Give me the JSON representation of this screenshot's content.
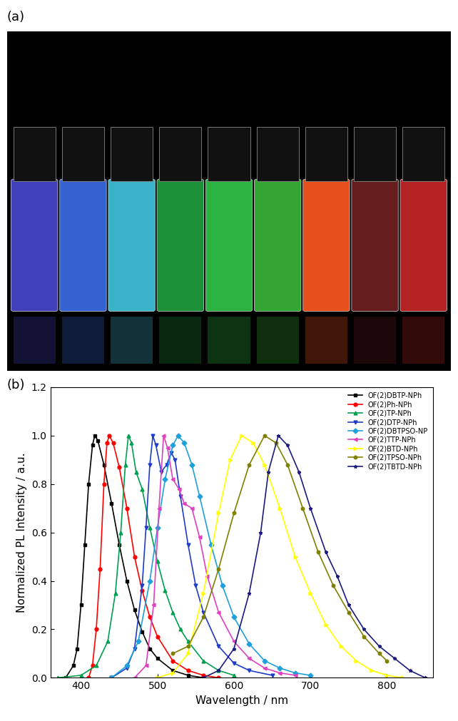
{
  "photo": {
    "label": "(a)"
  },
  "chart_data": {
    "type": "line",
    "panel_label": "(b)",
    "x_label": "Wavelength / nm",
    "y_label": "Normalized PL Intensity / a.u.",
    "xlim": [
      360,
      860
    ],
    "xticks": [
      400,
      500,
      600,
      700,
      800
    ],
    "ylim": [
      0.0,
      1.2
    ],
    "yticks": [
      0.0,
      0.2,
      0.4,
      0.6,
      0.8,
      1.0,
      1.2
    ],
    "legend": "upper right",
    "series": [
      {
        "name": "OF(2)DBTP-NPh",
        "color": "#000000",
        "marker": "square",
        "x": [
          380,
          390,
          395,
          400,
          405,
          410,
          415,
          418,
          422,
          430,
          440,
          450,
          460,
          470,
          480,
          490,
          500,
          520,
          540,
          560
        ],
        "values": [
          0.0,
          0.05,
          0.12,
          0.3,
          0.55,
          0.8,
          0.96,
          1.0,
          0.98,
          0.88,
          0.72,
          0.55,
          0.4,
          0.28,
          0.19,
          0.12,
          0.08,
          0.03,
          0.01,
          0.0
        ]
      },
      {
        "name": "OF(2)Ph-NPh",
        "color": "#ff0000",
        "marker": "circle",
        "x": [
          410,
          415,
          420,
          425,
          430,
          434,
          437,
          442,
          450,
          460,
          470,
          480,
          490,
          500,
          520,
          540,
          560,
          580
        ],
        "values": [
          0.0,
          0.05,
          0.2,
          0.45,
          0.8,
          0.97,
          1.0,
          0.97,
          0.87,
          0.7,
          0.5,
          0.36,
          0.25,
          0.17,
          0.07,
          0.03,
          0.01,
          0.0
        ]
      },
      {
        "name": "OF(2)TP-NPh",
        "color": "#00a050",
        "marker": "triangle_up",
        "x": [
          370,
          400,
          420,
          435,
          445,
          452,
          458,
          462,
          466,
          472,
          480,
          490,
          500,
          510,
          520,
          530,
          540,
          560,
          580,
          600
        ],
        "values": [
          0.0,
          0.01,
          0.05,
          0.15,
          0.35,
          0.6,
          0.88,
          1.0,
          0.97,
          0.85,
          0.78,
          0.62,
          0.48,
          0.36,
          0.27,
          0.2,
          0.15,
          0.07,
          0.03,
          0.01
        ]
      },
      {
        "name": "OF(2)DTP-NPh",
        "color": "#1e3cc8",
        "marker": "triangle_down",
        "x": [
          440,
          460,
          470,
          480,
          485,
          490,
          494,
          498,
          505,
          512,
          518,
          523,
          530,
          540,
          550,
          560,
          580,
          600,
          620,
          650
        ],
        "values": [
          0.0,
          0.04,
          0.12,
          0.38,
          0.62,
          0.88,
          1.0,
          0.96,
          0.85,
          0.88,
          0.93,
          0.9,
          0.75,
          0.55,
          0.38,
          0.27,
          0.13,
          0.06,
          0.03,
          0.01
        ]
      },
      {
        "name": "OF(2)DBTPSO-NP",
        "color": "#1ea0dc",
        "marker": "diamond",
        "x": [
          440,
          460,
          475,
          490,
          500,
          510,
          520,
          527,
          535,
          545,
          555,
          570,
          585,
          600,
          620,
          640,
          660,
          680,
          700
        ],
        "values": [
          0.0,
          0.05,
          0.15,
          0.4,
          0.62,
          0.82,
          0.96,
          1.0,
          0.97,
          0.88,
          0.75,
          0.55,
          0.38,
          0.25,
          0.14,
          0.07,
          0.04,
          0.02,
          0.01
        ]
      },
      {
        "name": "OF(2)TTP-NPh",
        "color": "#e040c0",
        "marker": "triangle_left",
        "x": [
          470,
          485,
          495,
          502,
          508,
          513,
          520,
          528,
          535,
          545,
          555,
          565,
          580,
          600,
          620,
          640,
          660,
          680
        ],
        "values": [
          0.0,
          0.05,
          0.3,
          0.7,
          1.0,
          0.95,
          0.82,
          0.78,
          0.72,
          0.7,
          0.58,
          0.42,
          0.27,
          0.15,
          0.08,
          0.04,
          0.02,
          0.01
        ]
      },
      {
        "name": "OF(2)BTD-NPh",
        "color": "#ffff00",
        "marker": "triangle_right",
        "x": [
          500,
          520,
          540,
          560,
          580,
          595,
          610,
          625,
          640,
          660,
          680,
          700,
          720,
          740,
          760,
          780,
          800,
          820
        ],
        "values": [
          0.0,
          0.02,
          0.1,
          0.35,
          0.68,
          0.9,
          1.0,
          0.97,
          0.88,
          0.7,
          0.5,
          0.35,
          0.22,
          0.13,
          0.07,
          0.03,
          0.01,
          0.0
        ]
      },
      {
        "name": "OF(2)TPSO-NPh",
        "color": "#808000",
        "marker": "hexagon",
        "x": [
          520,
          540,
          560,
          580,
          600,
          620,
          640,
          655,
          670,
          690,
          710,
          730,
          750,
          770,
          790,
          800
        ],
        "values": [
          0.1,
          0.13,
          0.25,
          0.45,
          0.68,
          0.88,
          1.0,
          0.97,
          0.88,
          0.7,
          0.52,
          0.38,
          0.27,
          0.17,
          0.1,
          0.07
        ]
      },
      {
        "name": "OF(2)TBTD-NPh",
        "color": "#1a1a80",
        "marker": "star",
        "x": [
          560,
          580,
          600,
          620,
          635,
          645,
          658,
          670,
          685,
          700,
          720,
          735,
          750,
          770,
          790,
          810,
          830,
          850
        ],
        "values": [
          0.0,
          0.03,
          0.12,
          0.35,
          0.6,
          0.85,
          1.0,
          0.96,
          0.85,
          0.7,
          0.52,
          0.42,
          0.3,
          0.2,
          0.13,
          0.08,
          0.03,
          0.0
        ]
      }
    ]
  }
}
